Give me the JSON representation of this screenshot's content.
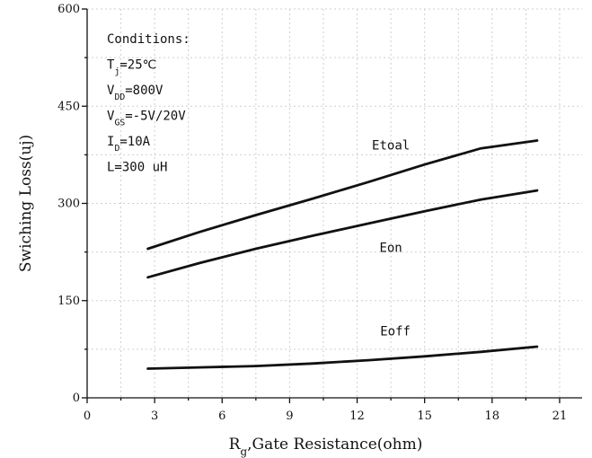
{
  "chart_data": {
    "type": "line",
    "title": "",
    "xlabel": {
      "main": "R",
      "sub": "g",
      "rest": ",Gate Resistance(ohm)"
    },
    "ylabel": "Swiching Loss(uj)",
    "xlim": [
      0,
      22
    ],
    "ylim": [
      0,
      600
    ],
    "xticks": [
      0,
      3,
      6,
      9,
      12,
      15,
      18,
      21
    ],
    "yticks": [
      0,
      150,
      300,
      450,
      600
    ],
    "grid": true,
    "legend": "none",
    "conditions": [
      {
        "main": "Conditions:",
        "sub": "",
        "rest": ""
      },
      {
        "main": "T",
        "sub": "j",
        "rest": "=25℃"
      },
      {
        "main": "V",
        "sub": "DD",
        "rest": "=800V"
      },
      {
        "main": "V",
        "sub": "GS",
        "rest": "=-5V/20V"
      },
      {
        "main": "I",
        "sub": "D",
        "rest": "=10A"
      },
      {
        "main": "L=300 uH",
        "sub": "",
        "rest": ""
      }
    ],
    "series": [
      {
        "name": "Etoal",
        "label_pos": {
          "x": 13.5,
          "y": 383
        },
        "x": [
          2.7,
          5,
          7.5,
          10,
          12.5,
          15,
          17.5,
          20
        ],
        "y": [
          230,
          256,
          282,
          307,
          333,
          360,
          385,
          397
        ]
      },
      {
        "name": "Eon",
        "label_pos": {
          "x": 13.5,
          "y": 225
        },
        "x": [
          2.7,
          5,
          7.5,
          10,
          12.5,
          15,
          17.5,
          20
        ],
        "y": [
          186,
          208,
          230,
          250,
          269,
          288,
          306,
          320
        ]
      },
      {
        "name": "Eoff",
        "label_pos": {
          "x": 13.7,
          "y": 96
        },
        "x": [
          2.7,
          5,
          7.5,
          10,
          12.5,
          15,
          17.5,
          20
        ],
        "y": [
          45,
          47,
          49,
          53,
          58,
          64,
          71,
          79
        ]
      }
    ]
  }
}
